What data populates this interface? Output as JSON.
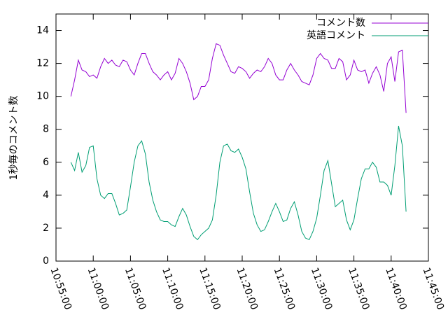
{
  "chart_data": {
    "type": "line",
    "ylabel": "1秒毎のコメント数",
    "x": [
      "10:57:00",
      "10:57:30",
      "10:58:00",
      "10:58:30",
      "10:59:00",
      "10:59:30",
      "11:00:00",
      "11:00:30",
      "11:01:00",
      "11:01:30",
      "11:02:00",
      "11:02:30",
      "11:03:00",
      "11:03:30",
      "11:04:00",
      "11:04:30",
      "11:05:00",
      "11:05:30",
      "11:06:00",
      "11:06:30",
      "11:07:00",
      "11:07:30",
      "11:08:00",
      "11:08:30",
      "11:09:00",
      "11:09:30",
      "11:10:00",
      "11:10:30",
      "11:11:00",
      "11:11:30",
      "11:12:00",
      "11:12:30",
      "11:13:00",
      "11:13:30",
      "11:14:00",
      "11:14:30",
      "11:15:00",
      "11:15:30",
      "11:16:00",
      "11:16:30",
      "11:17:00",
      "11:17:30",
      "11:18:00",
      "11:18:30",
      "11:19:00",
      "11:19:30",
      "11:20:00",
      "11:20:30",
      "11:21:00",
      "11:21:30",
      "11:22:00",
      "11:22:30",
      "11:23:00",
      "11:23:30",
      "11:24:00",
      "11:24:30",
      "11:25:00",
      "11:25:30",
      "11:26:00",
      "11:26:30",
      "11:27:00",
      "11:27:30",
      "11:28:00",
      "11:28:30",
      "11:29:00",
      "11:29:30",
      "11:30:00",
      "11:30:30",
      "11:31:00",
      "11:31:30",
      "11:32:00",
      "11:32:30",
      "11:33:00",
      "11:33:30",
      "11:34:00",
      "11:34:30",
      "11:35:00",
      "11:35:30",
      "11:36:00",
      "11:36:30",
      "11:37:00",
      "11:37:30",
      "11:38:00",
      "11:38:30",
      "11:39:00",
      "11:39:30",
      "11:40:00",
      "11:40:30",
      "11:41:00",
      "11:41:30",
      "11:42:00"
    ],
    "series": [
      {
        "name": "コメント数",
        "color": "#9400d3",
        "values": [
          10.0,
          11.0,
          12.2,
          11.6,
          11.5,
          11.2,
          11.3,
          11.1,
          11.8,
          12.3,
          12.0,
          12.2,
          11.9,
          11.8,
          12.2,
          12.1,
          11.6,
          11.3,
          12.0,
          12.6,
          12.6,
          12.0,
          11.5,
          11.3,
          11.0,
          11.3,
          11.5,
          11.0,
          11.4,
          12.3,
          12.0,
          11.5,
          10.8,
          9.8,
          10.0,
          10.6,
          10.6,
          11.0,
          12.3,
          13.2,
          13.1,
          12.5,
          12.0,
          11.5,
          11.4,
          11.8,
          11.7,
          11.5,
          11.1,
          11.4,
          11.6,
          11.5,
          11.8,
          12.3,
          12.0,
          11.3,
          11.0,
          11.0,
          11.6,
          12.0,
          11.6,
          11.3,
          10.9,
          10.8,
          10.7,
          11.3,
          12.3,
          12.6,
          12.3,
          12.2,
          11.7,
          11.7,
          12.3,
          12.1,
          11.0,
          11.3,
          12.2,
          11.6,
          11.5,
          11.6,
          10.8,
          11.4,
          11.8,
          11.3,
          10.3,
          12.0,
          12.4,
          10.9,
          12.7,
          12.8,
          9.0
        ]
      },
      {
        "name": "英語コメント",
        "color": "#009e73",
        "values": [
          6.0,
          5.5,
          6.6,
          5.4,
          5.8,
          6.9,
          7.0,
          5.0,
          4.0,
          3.8,
          4.1,
          4.1,
          3.5,
          2.8,
          2.9,
          3.1,
          4.5,
          6.0,
          7.0,
          7.3,
          6.5,
          4.8,
          3.7,
          3.0,
          2.5,
          2.4,
          2.4,
          2.2,
          2.1,
          2.7,
          3.2,
          2.8,
          2.1,
          1.5,
          1.3,
          1.6,
          1.8,
          2.0,
          2.5,
          4.0,
          6.0,
          7.0,
          7.1,
          6.7,
          6.6,
          6.8,
          6.3,
          5.6,
          4.2,
          2.9,
          2.2,
          1.8,
          1.9,
          2.4,
          3.0,
          3.5,
          3.0,
          2.4,
          2.5,
          3.2,
          3.6,
          2.8,
          1.8,
          1.4,
          1.3,
          1.8,
          2.6,
          4.0,
          5.5,
          6.1,
          4.7,
          3.3,
          3.5,
          3.7,
          2.5,
          1.9,
          2.5,
          3.8,
          5.0,
          5.6,
          5.6,
          6.0,
          5.7,
          4.8,
          4.8,
          4.6,
          4.0,
          5.8,
          8.2,
          7.0,
          3.0
        ]
      }
    ],
    "xlim": [
      "10:55:00",
      "11:45:00"
    ],
    "xticks": [
      "10:55:00",
      "11:00:00",
      "11:05:00",
      "11:10:00",
      "11:15:00",
      "11:20:00",
      "11:25:00",
      "11:30:00",
      "11:35:00",
      "11:40:00",
      "11:45:00"
    ],
    "ylim": [
      0,
      15
    ],
    "yticks": [
      0,
      2,
      4,
      6,
      8,
      10,
      12,
      14
    ],
    "legend": "top-right"
  }
}
